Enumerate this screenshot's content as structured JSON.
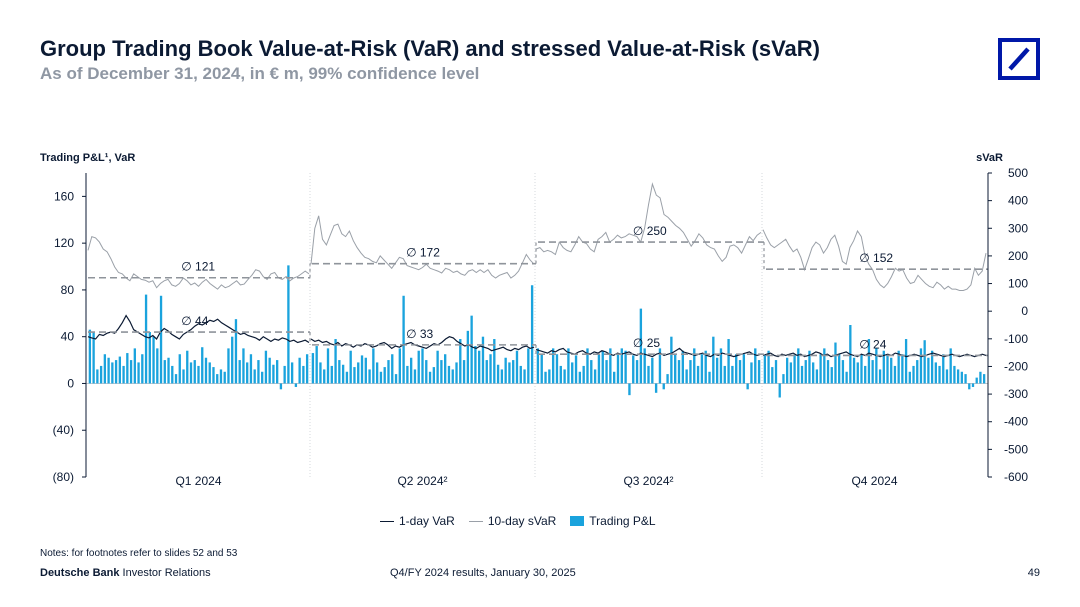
{
  "header": {
    "title": "Group Trading Book Value-at-Risk (VaR) and stressed Value-at-Risk (sVaR)",
    "subtitle": "As of December 31, 2024, in € m, 99% confidence level"
  },
  "colors": {
    "brand": "#0018a8",
    "pnl_bar": "#1aa3dd",
    "var_line": "#0b1a33",
    "svar_line": "#9aa0a8",
    "avg_dash": "#8f949b"
  },
  "chart_data": {
    "type": "bar",
    "title": "Group Trading Book Value-at-Risk (VaR) and stressed Value-at-Risk (sVaR)",
    "left_axis_label": "Trading P&L¹, VaR",
    "right_axis_label": "sVaR",
    "left_ylim": [
      -80,
      180
    ],
    "left_ticks": [
      "160",
      "120",
      "80",
      "40",
      "0",
      "(40)",
      "(80)"
    ],
    "left_tick_values": [
      160,
      120,
      80,
      40,
      0,
      -40,
      -80
    ],
    "right_ylim": [
      -600,
      500
    ],
    "right_ticks": [
      "500",
      "400",
      "300",
      "200",
      "100",
      "0",
      "-100",
      "-200",
      "-300",
      "-400",
      "-500",
      "-600"
    ],
    "right_tick_values": [
      500,
      400,
      300,
      200,
      100,
      0,
      -100,
      -200,
      -300,
      -400,
      -500,
      -600
    ],
    "quarters": [
      "Q1 2024",
      "Q2 2024²",
      "Q3 2024²",
      "Q4 2024"
    ],
    "legend": [
      "1-day VaR",
      "10-day sVaR",
      "Trading P&L"
    ],
    "averages": {
      "var": [
        {
          "quarter": "Q1 2024",
          "value": 44,
          "label": "∅ 44"
        },
        {
          "quarter": "Q2 2024²",
          "value": 33,
          "label": "∅ 33"
        },
        {
          "quarter": "Q3 2024²",
          "value": 25,
          "label": "∅ 25"
        },
        {
          "quarter": "Q4 2024",
          "value": 24,
          "label": "∅ 24"
        }
      ],
      "svar": [
        {
          "quarter": "Q1 2024",
          "value": 121,
          "label": "∅ 121"
        },
        {
          "quarter": "Q2 2024²",
          "value": 172,
          "label": "∅ 172"
        },
        {
          "quarter": "Q3 2024²",
          "value": 250,
          "label": "∅ 250"
        },
        {
          "quarter": "Q4 2024",
          "value": 152,
          "label": "∅ 152"
        }
      ]
    },
    "series": [
      {
        "name": "Trading P&L",
        "type": "bar",
        "axis": "left",
        "quarters": [
          [
            46,
            44,
            12,
            15,
            25,
            22,
            18,
            20,
            23,
            15,
            26,
            20,
            30,
            18,
            25,
            76,
            44,
            40,
            30,
            75,
            20,
            22,
            15,
            8,
            25,
            12,
            28,
            18,
            20,
            15,
            31,
            22,
            18,
            14,
            8,
            12,
            10,
            30,
            40,
            55,
            20,
            30,
            18,
            25,
            12,
            20,
            10,
            28,
            22,
            16,
            20,
            -5,
            15,
            101,
            18,
            -3,
            22,
            15,
            25
          ],
          [
            26,
            32,
            18,
            12,
            30,
            15,
            38,
            20,
            16,
            10,
            28,
            14,
            18,
            24,
            22,
            12,
            30,
            18,
            10,
            14,
            20,
            25,
            8,
            30,
            75,
            15,
            22,
            12,
            28,
            30,
            20,
            10,
            14,
            28,
            20,
            25,
            15,
            12,
            18,
            38,
            20,
            45,
            58,
            32,
            28,
            40,
            20,
            25,
            38,
            16,
            12,
            22,
            18,
            20,
            28,
            15,
            12,
            30,
            84
          ],
          [
            30,
            25,
            10,
            12,
            30,
            25,
            15,
            12,
            30,
            18,
            24,
            10,
            15,
            30,
            20,
            12,
            25,
            28,
            20,
            30,
            10,
            26,
            30,
            28,
            -10,
            24,
            20,
            64,
            30,
            15,
            22,
            -8,
            30,
            -5,
            8,
            40,
            25,
            20,
            28,
            12,
            20,
            30,
            15,
            25,
            28,
            10,
            40,
            22,
            30,
            15,
            38,
            15,
            25,
            20,
            25,
            -5,
            18,
            30,
            20
          ],
          [
            24,
            28,
            14,
            20,
            -12,
            8,
            22,
            18,
            25,
            30,
            15,
            20,
            28,
            18,
            12,
            25,
            30,
            20,
            14,
            35,
            25,
            20,
            10,
            50,
            22,
            18,
            25,
            15,
            38,
            20,
            30,
            12,
            28,
            25,
            22,
            15,
            28,
            25,
            38,
            10,
            15,
            20,
            30,
            37,
            22,
            28,
            18,
            15,
            25,
            12,
            30,
            15,
            12,
            10,
            8,
            -5,
            -3,
            5,
            10,
            8
          ]
        ]
      },
      {
        "name": "1-day VaR",
        "type": "line",
        "axis": "left",
        "quarters": [
          [
            40,
            39,
            38,
            42,
            41,
            43,
            44,
            43,
            47,
            52,
            58,
            53,
            46,
            44,
            42,
            40,
            39,
            41,
            38,
            44,
            47,
            45,
            42,
            40,
            38,
            42,
            44,
            46,
            49,
            51,
            50,
            52,
            54,
            53,
            55,
            52,
            50,
            48,
            46,
            44,
            42,
            43,
            41,
            40,
            39,
            37,
            40,
            38,
            36,
            38,
            37,
            39,
            38,
            36,
            37,
            35,
            36,
            37,
            35
          ],
          [
            38,
            36,
            37,
            35,
            36,
            34,
            33,
            35,
            32,
            34,
            33,
            31,
            33,
            32,
            34,
            33,
            31,
            32,
            34,
            35,
            33,
            30,
            32,
            31,
            33,
            34,
            35,
            33,
            32,
            31,
            30,
            32,
            34,
            33,
            35,
            38,
            40,
            39,
            36,
            34,
            32,
            33,
            31,
            30,
            32,
            31,
            30,
            28,
            29,
            30,
            31,
            29,
            28,
            30,
            29,
            31,
            32,
            30,
            31
          ],
          [
            29,
            28,
            27,
            26,
            28,
            27,
            29,
            30,
            27,
            26,
            25,
            27,
            28,
            26,
            25,
            27,
            26,
            28,
            27,
            25,
            24,
            26,
            25,
            26,
            27,
            25,
            24,
            26,
            25,
            24,
            23,
            25,
            26,
            24,
            25,
            26,
            28,
            30,
            27,
            26,
            25,
            24,
            25,
            26,
            24,
            23,
            25,
            24,
            26,
            25,
            24,
            23,
            24,
            25,
            26,
            27,
            25,
            24,
            25
          ],
          [
            24,
            25,
            26,
            24,
            23,
            25,
            24,
            25,
            26,
            24,
            25,
            23,
            24,
            25,
            27,
            26,
            24,
            25,
            23,
            24,
            25,
            26,
            27,
            25,
            24,
            23,
            25,
            24,
            26,
            25,
            24,
            23,
            24,
            25,
            24,
            26,
            25,
            24,
            23,
            24,
            25,
            24,
            23,
            24,
            25,
            26,
            25,
            24,
            23,
            24,
            25,
            24,
            23,
            24,
            25,
            24,
            23,
            24,
            25,
            24
          ]
        ]
      },
      {
        "name": "10-day sVaR",
        "type": "line",
        "axis": "right",
        "quarters": [
          [
            220,
            270,
            265,
            250,
            225,
            215,
            190,
            160,
            140,
            135,
            120,
            110,
            135,
            125,
            115,
            112,
            105,
            110,
            85,
            100,
            110,
            115,
            95,
            90,
            100,
            120,
            110,
            95,
            102,
            90,
            105,
            115,
            100,
            90,
            80,
            95,
            85,
            90,
            100,
            110,
            95,
            98,
            115,
            130,
            150,
            145,
            125,
            115,
            135,
            140,
            120,
            115,
            125,
            110,
            120,
            125,
            135,
            145,
            135
          ],
          [
            170,
            300,
            345,
            260,
            240,
            275,
            310,
            315,
            280,
            270,
            290,
            255,
            230,
            210,
            195,
            190,
            180,
            175,
            200,
            185,
            170,
            155,
            175,
            195,
            190,
            165,
            160,
            155,
            150,
            158,
            170,
            155,
            150,
            145,
            138,
            155,
            150,
            140,
            145,
            135,
            130,
            145,
            150,
            140,
            150,
            140,
            150,
            130,
            120,
            130,
            135,
            140,
            120,
            130,
            145,
            175,
            205,
            185,
            170
          ],
          [
            225,
            230,
            215,
            220,
            215,
            205,
            250,
            230,
            220,
            215,
            240,
            270,
            250,
            245,
            225,
            215,
            260,
            270,
            285,
            250,
            260,
            275,
            265,
            270,
            280,
            275,
            270,
            250,
            300,
            385,
            460,
            420,
            410,
            350,
            340,
            325,
            310,
            300,
            285,
            260,
            235,
            255,
            280,
            265,
            240,
            230,
            225,
            200,
            180,
            195,
            235,
            240,
            230,
            210,
            240,
            270,
            255,
            275,
            285
          ],
          [
            295,
            265,
            240,
            230,
            240,
            250,
            260,
            235,
            215,
            225,
            195,
            150,
            190,
            230,
            250,
            240,
            210,
            230,
            260,
            275,
            235,
            180,
            170,
            230,
            255,
            290,
            270,
            200,
            170,
            150,
            115,
            95,
            85,
            100,
            125,
            155,
            145,
            150,
            120,
            100,
            105,
            130,
            115,
            100,
            90,
            85,
            105,
            95,
            80,
            90,
            80,
            80,
            75,
            75,
            80,
            95,
            155,
            130,
            145,
            210
          ]
        ]
      }
    ]
  },
  "footer": {
    "notes": "Notes: for footnotes refer to slides 52 and 53",
    "brand_bold": "Deutsche Bank",
    "brand_rest": " Investor Relations",
    "center": "Q4/FY 2024 results, January 30, 2025",
    "page": "49"
  }
}
